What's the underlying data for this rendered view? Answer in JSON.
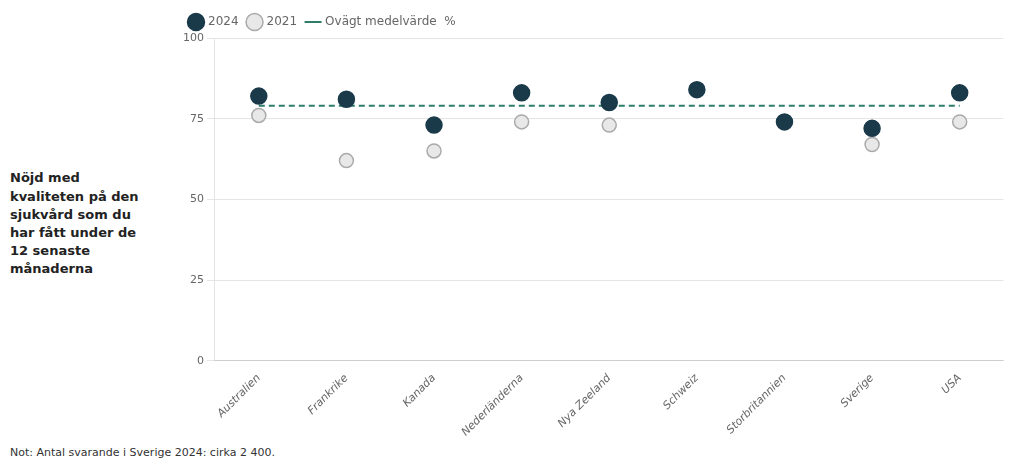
{
  "chart_data": {
    "type": "scatter",
    "title": "Nöjd med\nkvaliteten på den\nsjukvård som du\nhar fått under de\n12 senaste\nmånaderna",
    "annotations": [
      "Not: Antal svarande i Sverige 2024: cirka 2 400."
    ],
    "categories": [
      "Australien",
      "Frankrike",
      "Kanada",
      "Nederländerna",
      "Nya Zeeland",
      "Schweiz",
      "Storbritannien",
      "Sverige",
      "USA"
    ],
    "series": [
      {
        "name": "2024",
        "color": "#1a3a4a",
        "marker": "circle",
        "values": [
          82,
          81,
          73,
          83,
          80,
          84,
          74,
          72,
          83
        ]
      },
      {
        "name": "2021",
        "color": "#aaaaaa",
        "marker": "open circle",
        "values": [
          76,
          62,
          65,
          74,
          73,
          null,
          null,
          67,
          74
        ]
      },
      {
        "name": "Ovägt medelvärde  %",
        "type": "line",
        "line_style": "dashed",
        "color": "#2e7d6b",
        "values": [
          79,
          79,
          79,
          79,
          79,
          79,
          79,
          79,
          79
        ]
      }
    ],
    "ylim": [
      0,
      100
    ],
    "yticks": [
      0,
      25,
      50,
      75,
      100
    ],
    "grid": true,
    "legend": "upper left"
  }
}
